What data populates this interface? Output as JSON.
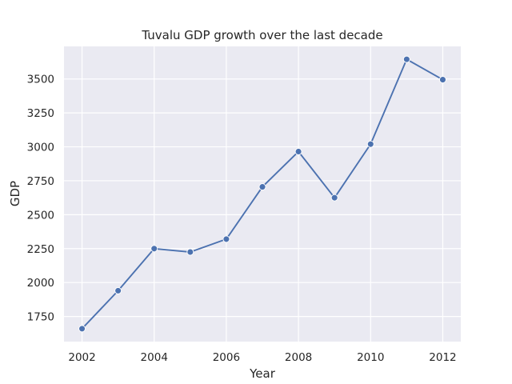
{
  "chart_data": {
    "type": "line",
    "title": "Tuvalu GDP growth over the last decade",
    "xlabel": "Year",
    "ylabel": "GDP",
    "x": [
      2002,
      2003,
      2004,
      2005,
      2006,
      2007,
      2008,
      2009,
      2010,
      2011,
      2012
    ],
    "series": [
      {
        "values": [
          1660,
          1940,
          2250,
          2225,
          2320,
          2705,
          2965,
          2625,
          3020,
          3645,
          3495
        ]
      }
    ],
    "xlim": [
      2001.5,
      2012.5
    ],
    "ylim": [
      1565,
      3740
    ],
    "xticks": [
      2002,
      2004,
      2006,
      2008,
      2010,
      2012
    ],
    "yticks": [
      1750,
      2000,
      2250,
      2500,
      2750,
      3000,
      3250,
      3500
    ],
    "grid": true,
    "colors": {
      "plot_background": "#eaeaf2",
      "grid": "#ffffff",
      "line": "#4c72b0",
      "text": "#262626"
    }
  }
}
